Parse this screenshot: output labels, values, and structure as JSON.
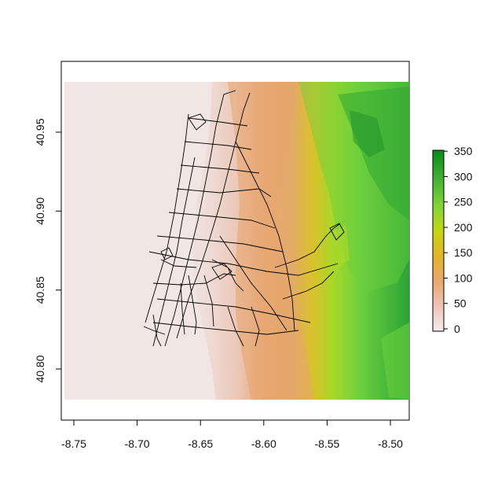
{
  "map": {
    "x_ticks": [
      "-8.75",
      "-8.70",
      "-8.65",
      "-8.60",
      "-8.55",
      "-8.50"
    ],
    "y_ticks": [
      "40.80",
      "40.85",
      "40.90",
      "40.95"
    ],
    "x_tick_values": [
      -8.75,
      -8.7,
      -8.65,
      -8.6,
      -8.55,
      -8.5
    ],
    "y_tick_values": [
      40.8,
      40.85,
      40.9,
      40.95
    ],
    "xlim": [
      -8.755,
      -8.47
    ],
    "ylim": [
      40.768,
      40.984
    ]
  },
  "legend": {
    "labels": [
      "0",
      "50",
      "100",
      "150",
      "200",
      "250",
      "300",
      "350"
    ],
    "values": [
      0,
      50,
      100,
      150,
      200,
      250,
      300,
      350
    ],
    "range": [
      0,
      355
    ],
    "colors": [
      "#f2ecec",
      "#eec4b6",
      "#e8a568",
      "#dfc11a",
      "#b2dc1c",
      "#6ed243",
      "#2fa833",
      "#0f8f1e"
    ]
  },
  "colors": {
    "roads": "#000000",
    "axis": "#000000",
    "low": "#f1e5e4",
    "mid": "#e8a878",
    "high": "#2fa833"
  }
}
